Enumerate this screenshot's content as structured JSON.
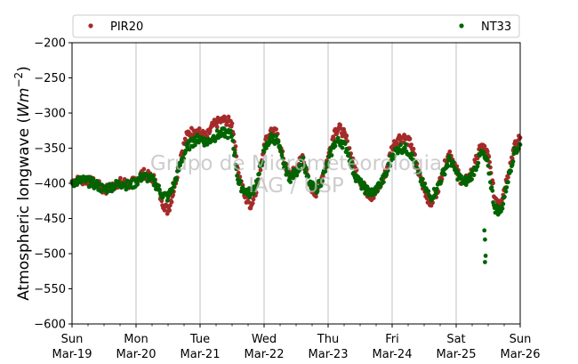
{
  "chart_data": {
    "type": "scatter",
    "ylabel_main": "Atmospheric longwave (",
    "ylabel_unit": "Wm",
    "ylabel_exp": "−2",
    "ylabel_close": ")",
    "ylim": [
      -600,
      -200
    ],
    "yticks": [
      -200,
      -250,
      -300,
      -350,
      -400,
      -450,
      -500,
      -550,
      -600
    ],
    "ytick_labels": [
      "−200",
      "−250",
      "−300",
      "−350",
      "−400",
      "−450",
      "−500",
      "−550",
      "−600"
    ],
    "xlim": [
      "Mar-19",
      "Mar-26"
    ],
    "xticks": [
      {
        "day": 0,
        "weekday": "Sun",
        "date": "Mar-19"
      },
      {
        "day": 1,
        "weekday": "Mon",
        "date": "Mar-20"
      },
      {
        "day": 2,
        "weekday": "Tue",
        "date": "Mar-21"
      },
      {
        "day": 3,
        "weekday": "Wed",
        "date": "Mar-22"
      },
      {
        "day": 4,
        "weekday": "Thu",
        "date": "Mar-23"
      },
      {
        "day": 5,
        "weekday": "Fri",
        "date": "Mar-24"
      },
      {
        "day": 6,
        "weekday": "Sat",
        "date": "Mar-25"
      },
      {
        "day": 7,
        "weekday": "Sun",
        "date": "Mar-26"
      }
    ],
    "grid": "vertical",
    "legend_position": "top",
    "watermark_line1": "Grupo de Micrometeorologia",
    "watermark_line2": "IAG / USP",
    "series": [
      {
        "name": "PIR20",
        "color": "#a52a2a",
        "x": [
          0,
          0.1,
          0.2,
          0.3,
          0.4,
          0.5,
          0.6,
          0.7,
          0.8,
          0.9,
          1.0,
          1.1,
          1.2,
          1.3,
          1.4,
          1.5,
          1.6,
          1.7,
          1.8,
          1.9,
          2.0,
          2.1,
          2.2,
          2.3,
          2.4,
          2.5,
          2.6,
          2.7,
          2.8,
          2.9,
          3.0,
          3.1,
          3.2,
          3.3,
          3.4,
          3.5,
          3.6,
          3.7,
          3.8,
          3.9,
          4.0,
          4.1,
          4.2,
          4.3,
          4.4,
          4.5,
          4.6,
          4.7,
          4.8,
          4.9,
          5.0,
          5.1,
          5.2,
          5.3,
          5.4,
          5.5,
          5.6,
          5.7,
          5.8,
          5.9,
          6.0,
          6.1,
          6.2,
          6.3,
          6.4,
          6.5,
          6.6,
          6.7,
          6.8,
          6.9,
          7.0
        ],
        "y": [
          -397,
          -396,
          -395,
          -398,
          -402,
          -410,
          -406,
          -400,
          -398,
          -402,
          -395,
          -385,
          -390,
          -395,
          -425,
          -440,
          -405,
          -360,
          -330,
          -325,
          -328,
          -335,
          -318,
          -312,
          -310,
          -315,
          -385,
          -420,
          -432,
          -400,
          -345,
          -325,
          -330,
          -365,
          -390,
          -380,
          -360,
          -400,
          -415,
          -392,
          -362,
          -325,
          -322,
          -340,
          -375,
          -395,
          -412,
          -420,
          -405,
          -385,
          -348,
          -335,
          -335,
          -345,
          -380,
          -408,
          -430,
          -412,
          -380,
          -355,
          -380,
          -400,
          -392,
          -370,
          -345,
          -360,
          -420,
          -425,
          -390,
          -350,
          -335
        ]
      },
      {
        "name": "NT33",
        "color": "#006400",
        "x": [
          0,
          0.1,
          0.2,
          0.3,
          0.4,
          0.5,
          0.6,
          0.7,
          0.8,
          0.9,
          1.0,
          1.1,
          1.2,
          1.3,
          1.4,
          1.5,
          1.6,
          1.7,
          1.8,
          1.9,
          2.0,
          2.1,
          2.2,
          2.3,
          2.4,
          2.5,
          2.6,
          2.7,
          2.8,
          2.9,
          3.0,
          3.1,
          3.2,
          3.3,
          3.4,
          3.5,
          3.6,
          3.7,
          3.8,
          3.9,
          4.0,
          4.1,
          4.2,
          4.3,
          4.4,
          4.5,
          4.6,
          4.7,
          4.8,
          4.9,
          5.0,
          5.1,
          5.2,
          5.3,
          5.4,
          5.5,
          5.6,
          5.7,
          5.8,
          5.9,
          6.0,
          6.1,
          6.2,
          6.3,
          6.4,
          6.5,
          6.6,
          6.7,
          6.8,
          6.9,
          7.0
        ],
        "y": [
          -398,
          -397,
          -396,
          -399,
          -403,
          -409,
          -405,
          -402,
          -400,
          -404,
          -398,
          -390,
          -392,
          -400,
          -415,
          -420,
          -400,
          -370,
          -348,
          -340,
          -335,
          -342,
          -335,
          -330,
          -328,
          -332,
          -400,
          -410,
          -415,
          -395,
          -355,
          -335,
          -338,
          -372,
          -392,
          -385,
          -365,
          -400,
          -410,
          -395,
          -370,
          -342,
          -340,
          -352,
          -385,
          -400,
          -410,
          -415,
          -402,
          -390,
          -360,
          -350,
          -350,
          -358,
          -385,
          -405,
          -420,
          -408,
          -385,
          -365,
          -385,
          -398,
          -395,
          -378,
          -355,
          -375,
          -435,
          -440,
          -398,
          -358,
          -345
        ]
      }
    ],
    "outliers": {
      "series": "NT33",
      "x": [
        6.44,
        6.45,
        6.46,
        6.45
      ],
      "y": [
        -467,
        -480,
        -503,
        -512
      ]
    }
  }
}
